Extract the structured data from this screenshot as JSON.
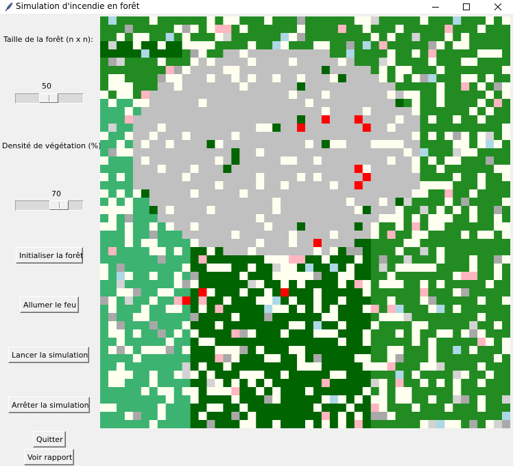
{
  "window": {
    "title": "Simulation d'incendie en forêt",
    "icon": "feather-icon"
  },
  "controls": {
    "size_label": "Taille de la forêt (n x n):",
    "size_value": "50",
    "size_slider_level": 0.49,
    "density_label": "Densité de végétation (%):",
    "density_value": "70",
    "density_slider_level": 0.7,
    "init_button": "Initialiser la forêt",
    "ignite_button": "Allumer le feu",
    "start_button": "Lancer la simulation",
    "stop_button": "Arrêter la simulation",
    "quit_button": "Quitter",
    "report_button": "Voir rapport"
  },
  "grid": {
    "n": 50,
    "colors": {
      "empty": "#fffff0",
      "ash": "#c0c0c0",
      "fire": "#ff0000",
      "tree_dark": "#006400",
      "tree": "#228b22",
      "tree_medium": "#3cb371",
      "rock": "#a9a9a9",
      "water": "#add8e6",
      "flower": "#ffb6c1"
    }
  }
}
